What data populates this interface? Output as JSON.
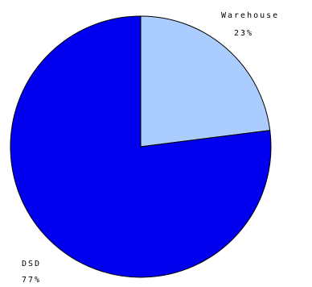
{
  "chart_data": {
    "type": "pie",
    "title": "",
    "slices": [
      {
        "name": "Warehouse",
        "percent_label": "23%",
        "value": 23,
        "color": "#aaccff"
      },
      {
        "name": "DSD",
        "percent_label": "77%",
        "value": 77,
        "color": "#0000ee"
      }
    ],
    "start_angle_deg": 0,
    "direction": "clockwise",
    "outline_color": "#000000"
  }
}
